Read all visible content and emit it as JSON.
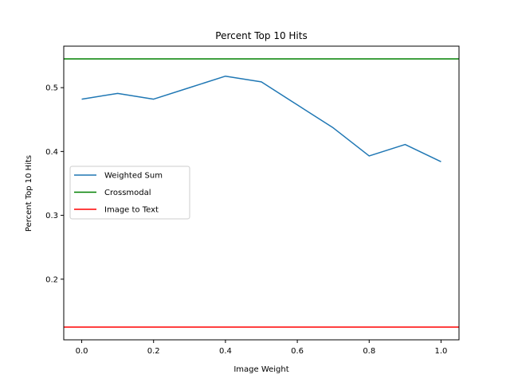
{
  "chart_data": {
    "type": "line",
    "title": "Percent Top 10 Hits",
    "xlabel": "Image Weight",
    "ylabel": "Percent Top 10 Hits",
    "xlim": [
      -0.05,
      1.05
    ],
    "ylim": [
      0.105,
      0.565
    ],
    "xticks": [
      0.0,
      0.2,
      0.4,
      0.6,
      0.8,
      1.0
    ],
    "xtick_labels": [
      "0.0",
      "0.2",
      "0.4",
      "0.6",
      "0.8",
      "1.0"
    ],
    "yticks": [
      0.2,
      0.3,
      0.4,
      0.5
    ],
    "ytick_labels": [
      "0.2",
      "0.3",
      "0.4",
      "0.5"
    ],
    "grid": false,
    "legend_position": "center-left",
    "series": [
      {
        "name": "Weighted Sum",
        "kind": "line",
        "color": "#1f77b4",
        "x": [
          0.0,
          0.1,
          0.2,
          0.3,
          0.4,
          0.5,
          0.6,
          0.7,
          0.8,
          0.9,
          1.0
        ],
        "y": [
          0.482,
          0.491,
          0.482,
          0.5,
          0.518,
          0.509,
          0.473,
          0.437,
          0.393,
          0.411,
          0.384
        ]
      },
      {
        "name": "Crossmodal",
        "kind": "hline",
        "color": "#008000",
        "y": 0.545
      },
      {
        "name": "Image to Text",
        "kind": "hline",
        "color": "#ff0000",
        "y": 0.125
      }
    ]
  }
}
